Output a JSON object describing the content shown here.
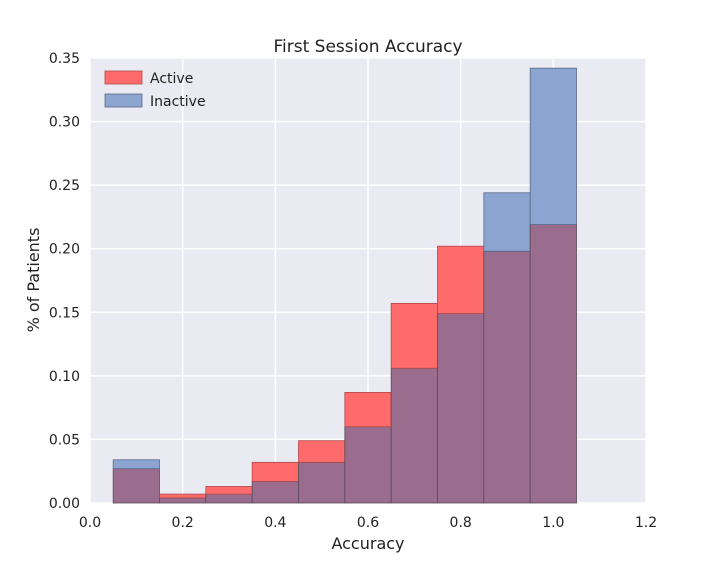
{
  "chart_data": {
    "type": "bar",
    "title": "First Session Accuracy",
    "xlabel": "Accuracy",
    "ylabel": "% of Patients",
    "xlim": [
      0.0,
      1.2
    ],
    "ylim": [
      0.0,
      0.35
    ],
    "xticks": [
      "0.0",
      "0.2",
      "0.4",
      "0.6",
      "0.8",
      "1.0",
      "1.2"
    ],
    "yticks": [
      "0.00",
      "0.05",
      "0.10",
      "0.15",
      "0.20",
      "0.25",
      "0.30",
      "0.35"
    ],
    "grid": true,
    "legend_position": "top-left",
    "bin_edges": [
      0.05,
      0.15,
      0.25,
      0.35,
      0.45,
      0.55,
      0.65,
      0.75,
      0.85,
      0.95,
      1.05
    ],
    "series": [
      {
        "name": "Active",
        "color": "#ff6b6b",
        "values": [
          0.027,
          0.007,
          0.013,
          0.032,
          0.049,
          0.087,
          0.157,
          0.202,
          0.198,
          0.219
        ]
      },
      {
        "name": "Inactive",
        "color": "#8ba4d0",
        "values": [
          0.034,
          0.004,
          0.007,
          0.017,
          0.032,
          0.06,
          0.106,
          0.149,
          0.244,
          0.342
        ]
      }
    ],
    "overlap_color": "#9a6d8e",
    "background_color": "#eaeaf2"
  }
}
